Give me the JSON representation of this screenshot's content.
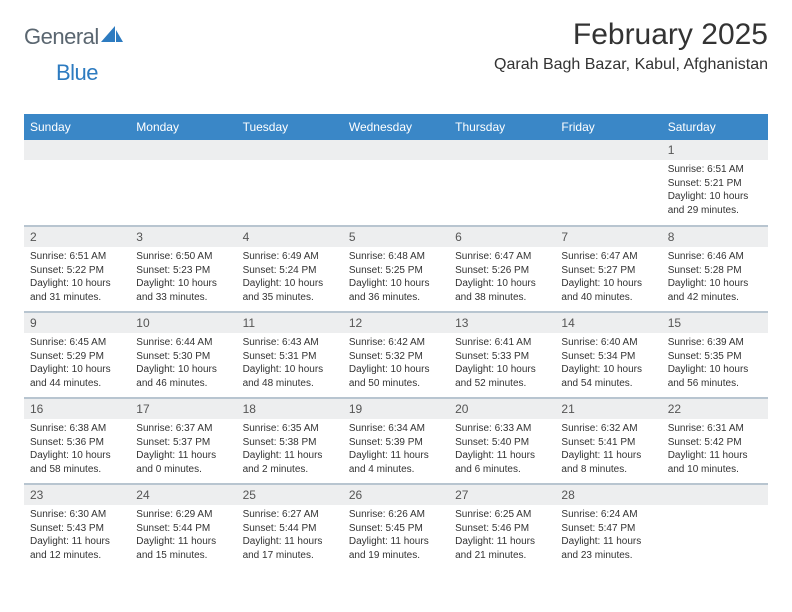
{
  "logo": {
    "general": "General",
    "blue": "Blue"
  },
  "title": "February 2025",
  "location": "Qarah Bagh Bazar, Kabul, Afghanistan",
  "colors": {
    "header_bg": "#3a87c7",
    "header_text": "#ffffff",
    "daynum_bg": "#edeeef",
    "row_border": "#b8c5d0",
    "logo_gray": "#5a6670",
    "logo_blue": "#2d7bc0",
    "body_text": "#333333"
  },
  "typography": {
    "title_fontsize": 30,
    "location_fontsize": 16,
    "header_fontsize": 12,
    "daynum_fontsize": 12,
    "body_fontsize": 10
  },
  "day_names": [
    "Sunday",
    "Monday",
    "Tuesday",
    "Wednesday",
    "Thursday",
    "Friday",
    "Saturday"
  ],
  "weeks": [
    [
      null,
      null,
      null,
      null,
      null,
      null,
      {
        "n": "1",
        "sr": "Sunrise: 6:51 AM",
        "ss": "Sunset: 5:21 PM",
        "dl": "Daylight: 10 hours and 29 minutes."
      }
    ],
    [
      {
        "n": "2",
        "sr": "Sunrise: 6:51 AM",
        "ss": "Sunset: 5:22 PM",
        "dl": "Daylight: 10 hours and 31 minutes."
      },
      {
        "n": "3",
        "sr": "Sunrise: 6:50 AM",
        "ss": "Sunset: 5:23 PM",
        "dl": "Daylight: 10 hours and 33 minutes."
      },
      {
        "n": "4",
        "sr": "Sunrise: 6:49 AM",
        "ss": "Sunset: 5:24 PM",
        "dl": "Daylight: 10 hours and 35 minutes."
      },
      {
        "n": "5",
        "sr": "Sunrise: 6:48 AM",
        "ss": "Sunset: 5:25 PM",
        "dl": "Daylight: 10 hours and 36 minutes."
      },
      {
        "n": "6",
        "sr": "Sunrise: 6:47 AM",
        "ss": "Sunset: 5:26 PM",
        "dl": "Daylight: 10 hours and 38 minutes."
      },
      {
        "n": "7",
        "sr": "Sunrise: 6:47 AM",
        "ss": "Sunset: 5:27 PM",
        "dl": "Daylight: 10 hours and 40 minutes."
      },
      {
        "n": "8",
        "sr": "Sunrise: 6:46 AM",
        "ss": "Sunset: 5:28 PM",
        "dl": "Daylight: 10 hours and 42 minutes."
      }
    ],
    [
      {
        "n": "9",
        "sr": "Sunrise: 6:45 AM",
        "ss": "Sunset: 5:29 PM",
        "dl": "Daylight: 10 hours and 44 minutes."
      },
      {
        "n": "10",
        "sr": "Sunrise: 6:44 AM",
        "ss": "Sunset: 5:30 PM",
        "dl": "Daylight: 10 hours and 46 minutes."
      },
      {
        "n": "11",
        "sr": "Sunrise: 6:43 AM",
        "ss": "Sunset: 5:31 PM",
        "dl": "Daylight: 10 hours and 48 minutes."
      },
      {
        "n": "12",
        "sr": "Sunrise: 6:42 AM",
        "ss": "Sunset: 5:32 PM",
        "dl": "Daylight: 10 hours and 50 minutes."
      },
      {
        "n": "13",
        "sr": "Sunrise: 6:41 AM",
        "ss": "Sunset: 5:33 PM",
        "dl": "Daylight: 10 hours and 52 minutes."
      },
      {
        "n": "14",
        "sr": "Sunrise: 6:40 AM",
        "ss": "Sunset: 5:34 PM",
        "dl": "Daylight: 10 hours and 54 minutes."
      },
      {
        "n": "15",
        "sr": "Sunrise: 6:39 AM",
        "ss": "Sunset: 5:35 PM",
        "dl": "Daylight: 10 hours and 56 minutes."
      }
    ],
    [
      {
        "n": "16",
        "sr": "Sunrise: 6:38 AM",
        "ss": "Sunset: 5:36 PM",
        "dl": "Daylight: 10 hours and 58 minutes."
      },
      {
        "n": "17",
        "sr": "Sunrise: 6:37 AM",
        "ss": "Sunset: 5:37 PM",
        "dl": "Daylight: 11 hours and 0 minutes."
      },
      {
        "n": "18",
        "sr": "Sunrise: 6:35 AM",
        "ss": "Sunset: 5:38 PM",
        "dl": "Daylight: 11 hours and 2 minutes."
      },
      {
        "n": "19",
        "sr": "Sunrise: 6:34 AM",
        "ss": "Sunset: 5:39 PM",
        "dl": "Daylight: 11 hours and 4 minutes."
      },
      {
        "n": "20",
        "sr": "Sunrise: 6:33 AM",
        "ss": "Sunset: 5:40 PM",
        "dl": "Daylight: 11 hours and 6 minutes."
      },
      {
        "n": "21",
        "sr": "Sunrise: 6:32 AM",
        "ss": "Sunset: 5:41 PM",
        "dl": "Daylight: 11 hours and 8 minutes."
      },
      {
        "n": "22",
        "sr": "Sunrise: 6:31 AM",
        "ss": "Sunset: 5:42 PM",
        "dl": "Daylight: 11 hours and 10 minutes."
      }
    ],
    [
      {
        "n": "23",
        "sr": "Sunrise: 6:30 AM",
        "ss": "Sunset: 5:43 PM",
        "dl": "Daylight: 11 hours and 12 minutes."
      },
      {
        "n": "24",
        "sr": "Sunrise: 6:29 AM",
        "ss": "Sunset: 5:44 PM",
        "dl": "Daylight: 11 hours and 15 minutes."
      },
      {
        "n": "25",
        "sr": "Sunrise: 6:27 AM",
        "ss": "Sunset: 5:44 PM",
        "dl": "Daylight: 11 hours and 17 minutes."
      },
      {
        "n": "26",
        "sr": "Sunrise: 6:26 AM",
        "ss": "Sunset: 5:45 PM",
        "dl": "Daylight: 11 hours and 19 minutes."
      },
      {
        "n": "27",
        "sr": "Sunrise: 6:25 AM",
        "ss": "Sunset: 5:46 PM",
        "dl": "Daylight: 11 hours and 21 minutes."
      },
      {
        "n": "28",
        "sr": "Sunrise: 6:24 AM",
        "ss": "Sunset: 5:47 PM",
        "dl": "Daylight: 11 hours and 23 minutes."
      },
      null
    ]
  ]
}
